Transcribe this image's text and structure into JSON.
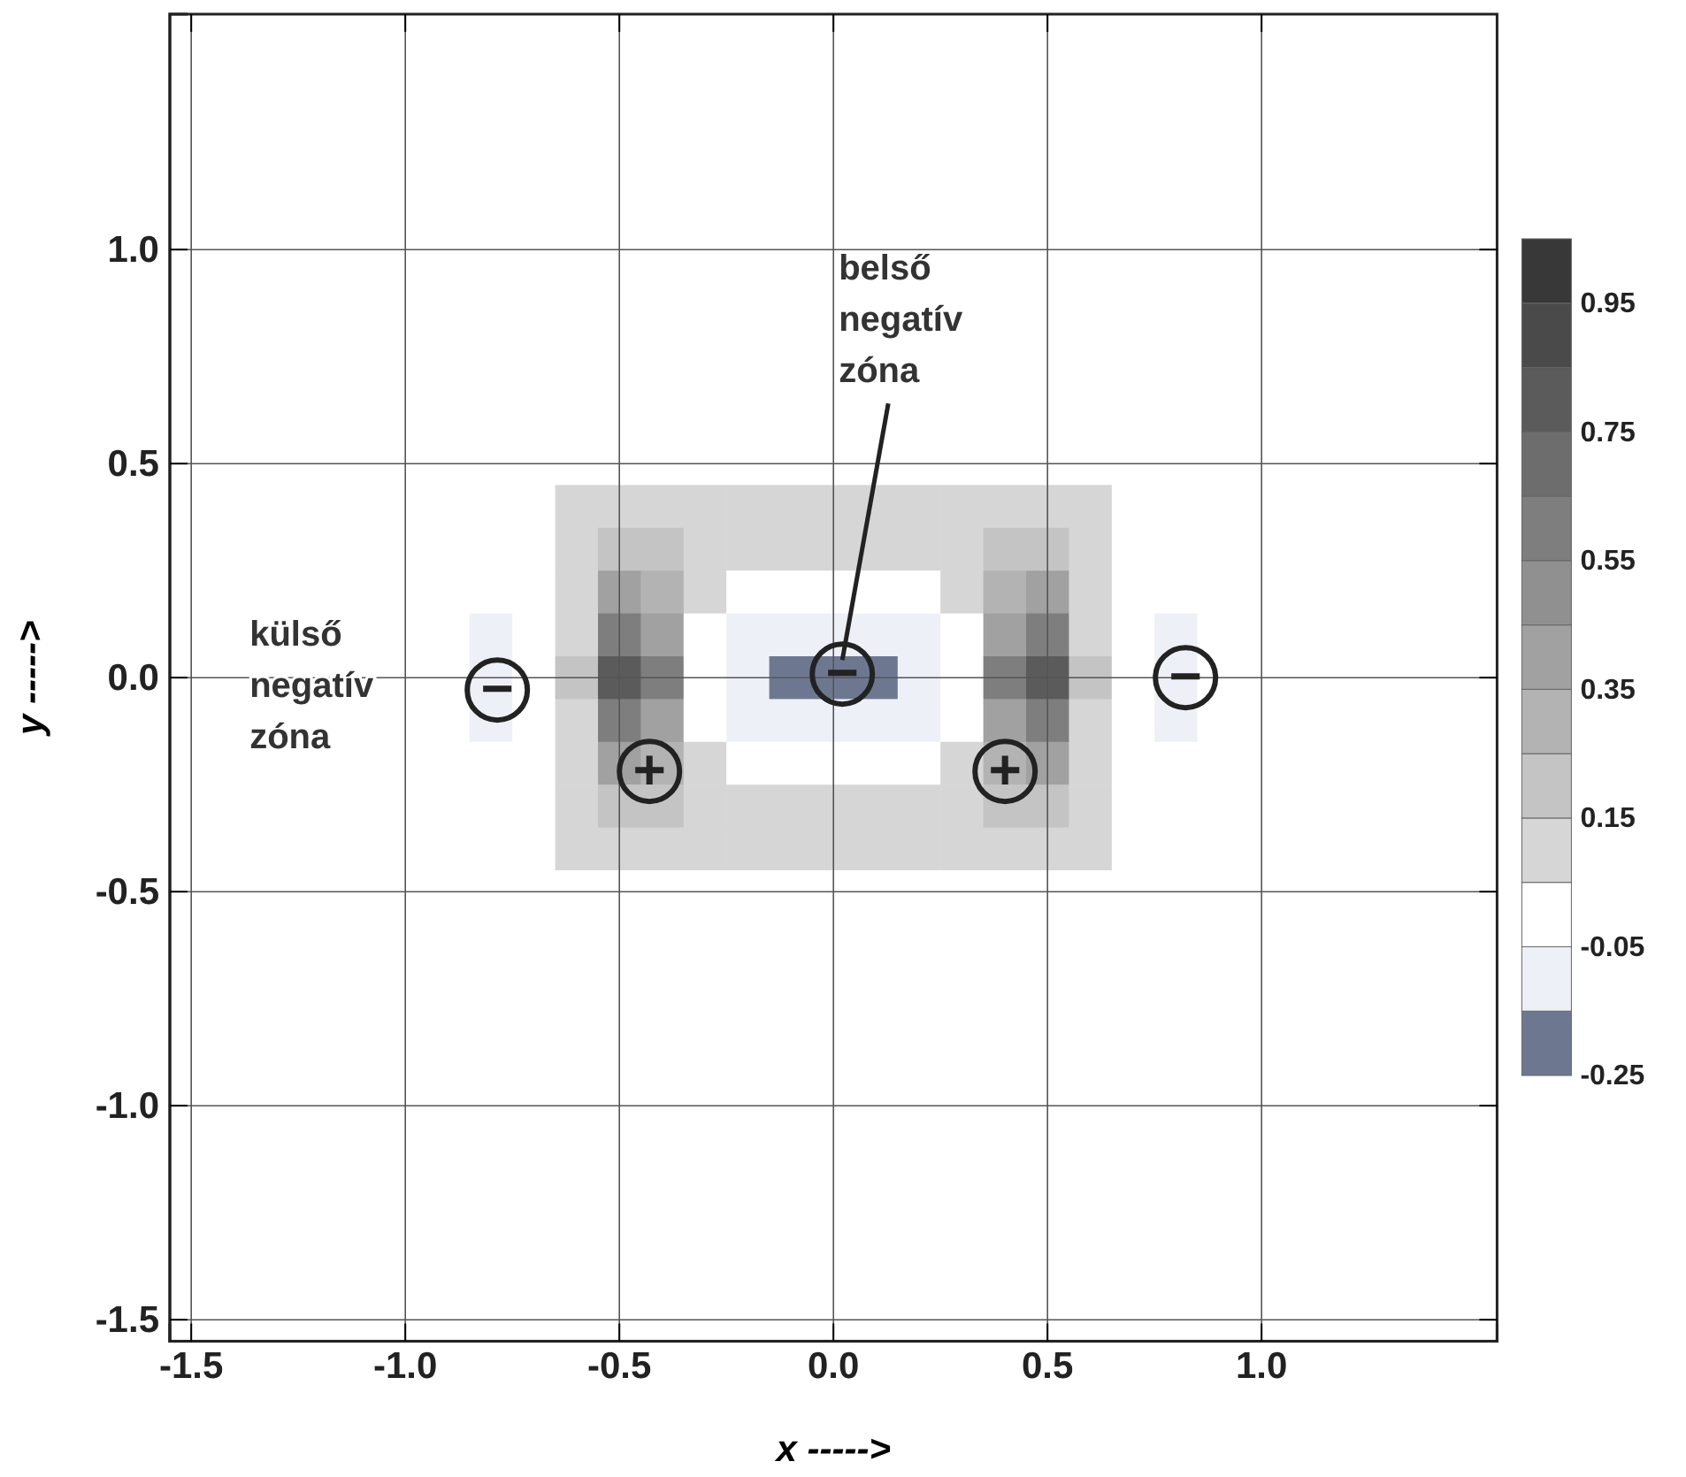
{
  "chart_data": {
    "type": "heatmap",
    "xlabel": "x ----->",
    "ylabel": "y ----->",
    "categories": [
      "-1.5",
      null,
      null,
      null,
      null,
      "-1.0",
      null,
      null,
      null,
      null,
      "-0.5",
      null,
      null,
      null,
      null,
      "0.0",
      null,
      null,
      null,
      null,
      "0.5",
      null,
      null,
      null,
      null,
      "1.0",
      null,
      null,
      null,
      null,
      null
    ],
    "y_categories": [
      null,
      null,
      null,
      null,
      null,
      "1.0",
      null,
      null,
      null,
      null,
      "0.5",
      null,
      null,
      null,
      null,
      "0.0",
      null,
      null,
      null,
      null,
      "-0.5",
      null,
      null,
      null,
      null,
      "-1.0",
      null,
      null,
      null,
      null,
      "-1.5"
    ],
    "grid": true,
    "clim": [
      -0.25,
      1.05
    ],
    "cticks": [
      -0.25,
      -0.05,
      0.15,
      0.35,
      0.55,
      0.75,
      0.95
    ],
    "cells": [
      [
        0,
        0,
        0,
        0,
        0,
        0,
        0,
        0,
        0,
        0,
        0,
        0,
        0,
        0,
        0,
        0,
        0,
        0,
        0,
        0,
        0,
        0,
        0,
        0,
        0,
        0,
        0,
        0,
        0,
        0,
        0
      ],
      [
        0,
        0,
        0,
        0,
        0,
        0,
        0,
        0,
        0,
        0,
        0,
        0,
        0,
        0,
        0,
        0,
        0,
        0,
        0,
        0,
        0,
        0,
        0,
        0,
        0,
        0,
        0,
        0,
        0,
        0,
        0
      ],
      [
        0,
        0,
        0,
        0,
        0,
        0,
        0,
        0,
        0,
        0,
        0,
        0,
        0,
        0,
        0,
        0,
        0,
        0,
        0,
        0,
        0,
        0,
        0,
        0,
        0,
        0,
        0,
        0,
        0,
        0,
        0
      ],
      [
        0,
        0,
        0,
        0,
        0,
        0,
        0,
        0,
        0,
        0,
        0,
        0,
        0,
        0,
        0,
        0,
        0,
        0,
        0,
        0,
        0,
        0,
        0,
        0,
        0,
        0,
        0,
        0,
        0,
        0,
        0
      ],
      [
        0,
        0,
        0,
        0,
        0,
        0,
        0,
        0,
        0,
        0,
        0,
        0,
        0,
        0,
        0,
        0,
        0,
        0,
        0,
        0,
        0,
        0,
        0,
        0,
        0,
        0,
        0,
        0,
        0,
        0,
        0
      ],
      [
        0,
        0,
        0,
        0,
        0,
        0,
        0,
        0,
        0,
        0,
        0,
        0,
        0,
        0,
        0,
        0,
        0,
        0,
        0,
        0,
        0,
        0,
        0,
        0,
        0,
        0,
        0,
        0,
        0,
        0,
        0
      ],
      [
        0,
        0,
        0,
        0,
        0,
        0,
        0,
        0,
        0,
        0,
        0,
        0,
        0,
        0,
        0,
        0,
        0,
        0,
        0,
        0,
        0,
        0,
        0,
        0,
        0,
        0,
        0,
        0,
        0,
        0,
        0
      ],
      [
        0,
        0,
        0,
        0,
        0,
        0,
        0,
        0,
        0,
        0,
        0,
        0,
        0,
        0,
        0,
        0,
        0,
        0,
        0,
        0,
        0,
        0,
        0,
        0,
        0,
        0,
        0,
        0,
        0,
        0,
        0
      ],
      [
        0,
        0,
        0,
        0,
        0,
        0,
        0,
        0,
        0,
        0,
        0,
        0,
        0,
        0,
        0,
        0,
        0,
        0,
        0,
        0,
        0,
        0,
        0,
        0,
        0,
        0,
        0,
        0,
        0,
        0,
        0
      ],
      [
        0,
        0,
        0,
        0,
        0,
        0,
        0,
        0,
        0,
        0,
        0,
        0,
        0,
        0,
        0,
        0,
        0,
        0,
        0,
        0,
        0,
        0,
        0,
        0,
        0,
        0,
        0,
        0,
        0,
        0,
        0
      ],
      [
        0,
        0,
        0,
        0,
        0,
        0,
        0,
        0,
        0,
        0,
        0,
        0,
        0,
        0,
        0,
        0,
        0,
        0,
        0,
        0,
        0,
        0,
        0,
        0,
        0,
        0,
        0,
        0,
        0,
        0,
        0
      ],
      [
        0,
        0,
        0,
        0,
        0,
        0,
        0,
        0,
        0,
        0.1,
        0.1,
        0.1,
        0.1,
        0.1,
        0.1,
        0.1,
        0.1,
        0.1,
        0.1,
        0.1,
        0.1,
        0.1,
        0,
        0,
        0,
        0,
        0,
        0,
        0,
        0,
        0
      ],
      [
        0,
        0,
        0,
        0,
        0,
        0,
        0,
        0,
        0,
        0.1,
        0.2,
        0.2,
        0.1,
        0.1,
        0.1,
        0.1,
        0.1,
        0.1,
        0.1,
        0.2,
        0.2,
        0.1,
        0,
        0,
        0,
        0,
        0,
        0,
        0,
        0,
        0
      ],
      [
        0,
        0,
        0,
        0,
        0,
        0,
        0,
        0,
        0,
        0.1,
        0.4,
        0.3,
        0.1,
        0,
        0,
        0,
        0,
        0,
        0.1,
        0.3,
        0.4,
        0.1,
        0,
        0,
        0,
        0,
        0,
        0,
        0,
        0,
        0
      ],
      [
        0,
        0,
        0,
        0,
        0,
        0,
        0,
        -0.1,
        0,
        0.1,
        0.6,
        0.4,
        0,
        -0.1,
        -0.1,
        -0.1,
        -0.1,
        -0.1,
        0,
        0.4,
        0.6,
        0.1,
        0,
        -0.1,
        0,
        0,
        0,
        0,
        0,
        0,
        0
      ],
      [
        0,
        0,
        0,
        0,
        0,
        0,
        0,
        -0.1,
        0,
        0.2,
        0.8,
        0.6,
        0,
        -0.1,
        -0.2,
        -0.2,
        -0.2,
        -0.1,
        0,
        0.6,
        0.8,
        0.2,
        0,
        -0.1,
        0,
        0,
        0,
        0,
        0,
        0,
        0
      ],
      [
        0,
        0,
        0,
        0,
        0,
        0,
        0,
        -0.1,
        0,
        0.1,
        0.6,
        0.4,
        0,
        -0.1,
        -0.1,
        -0.1,
        -0.1,
        -0.1,
        0,
        0.4,
        0.6,
        0.1,
        0,
        -0.1,
        0,
        0,
        0,
        0,
        0,
        0,
        0
      ],
      [
        0,
        0,
        0,
        0,
        0,
        0,
        0,
        0,
        0,
        0.1,
        0.4,
        0.3,
        0.1,
        0,
        0,
        0,
        0,
        0,
        0.1,
        0.3,
        0.4,
        0.1,
        0,
        0,
        0,
        0,
        0,
        0,
        0,
        0,
        0
      ],
      [
        0,
        0,
        0,
        0,
        0,
        0,
        0,
        0,
        0,
        0.1,
        0.2,
        0.2,
        0.1,
        0.1,
        0.1,
        0.1,
        0.1,
        0.1,
        0.1,
        0.2,
        0.2,
        0.1,
        0,
        0,
        0,
        0,
        0,
        0,
        0,
        0,
        0
      ],
      [
        0,
        0,
        0,
        0,
        0,
        0,
        0,
        0,
        0,
        0.1,
        0.1,
        0.1,
        0.1,
        0.1,
        0.1,
        0.1,
        0.1,
        0.1,
        0.1,
        0.1,
        0.1,
        0.1,
        0,
        0,
        0,
        0,
        0,
        0,
        0,
        0,
        0
      ],
      [
        0,
        0,
        0,
        0,
        0,
        0,
        0,
        0,
        0,
        0,
        0,
        0,
        0,
        0,
        0,
        0,
        0,
        0,
        0,
        0,
        0,
        0,
        0,
        0,
        0,
        0,
        0,
        0,
        0,
        0,
        0
      ],
      [
        0,
        0,
        0,
        0,
        0,
        0,
        0,
        0,
        0,
        0,
        0,
        0,
        0,
        0,
        0,
        0,
        0,
        0,
        0,
        0,
        0,
        0,
        0,
        0,
        0,
        0,
        0,
        0,
        0,
        0,
        0
      ],
      [
        0,
        0,
        0,
        0,
        0,
        0,
        0,
        0,
        0,
        0,
        0,
        0,
        0,
        0,
        0,
        0,
        0,
        0,
        0,
        0,
        0,
        0,
        0,
        0,
        0,
        0,
        0,
        0,
        0,
        0,
        0
      ],
      [
        0,
        0,
        0,
        0,
        0,
        0,
        0,
        0,
        0,
        0,
        0,
        0,
        0,
        0,
        0,
        0,
        0,
        0,
        0,
        0,
        0,
        0,
        0,
        0,
        0,
        0,
        0,
        0,
        0,
        0,
        0
      ],
      [
        0,
        0,
        0,
        0,
        0,
        0,
        0,
        0,
        0,
        0,
        0,
        0,
        0,
        0,
        0,
        0,
        0,
        0,
        0,
        0,
        0,
        0,
        0,
        0,
        0,
        0,
        0,
        0,
        0,
        0,
        0
      ],
      [
        0,
        0,
        0,
        0,
        0,
        0,
        0,
        0,
        0,
        0,
        0,
        0,
        0,
        0,
        0,
        0,
        0,
        0,
        0,
        0,
        0,
        0,
        0,
        0,
        0,
        0,
        0,
        0,
        0,
        0,
        0
      ],
      [
        0,
        0,
        0,
        0,
        0,
        0,
        0,
        0,
        0,
        0,
        0,
        0,
        0,
        0,
        0,
        0,
        0,
        0,
        0,
        0,
        0,
        0,
        0,
        0,
        0,
        0,
        0,
        0,
        0,
        0,
        0
      ],
      [
        0,
        0,
        0,
        0,
        0,
        0,
        0,
        0,
        0,
        0,
        0,
        0,
        0,
        0,
        0,
        0,
        0,
        0,
        0,
        0,
        0,
        0,
        0,
        0,
        0,
        0,
        0,
        0,
        0,
        0,
        0
      ],
      [
        0,
        0,
        0,
        0,
        0,
        0,
        0,
        0,
        0,
        0,
        0,
        0,
        0,
        0,
        0,
        0,
        0,
        0,
        0,
        0,
        0,
        0,
        0,
        0,
        0,
        0,
        0,
        0,
        0,
        0,
        0
      ],
      [
        0,
        0,
        0,
        0,
        0,
        0,
        0,
        0,
        0,
        0,
        0,
        0,
        0,
        0,
        0,
        0,
        0,
        0,
        0,
        0,
        0,
        0,
        0,
        0,
        0,
        0,
        0,
        0,
        0,
        0,
        0
      ],
      [
        0,
        0,
        0,
        0,
        0,
        0,
        0,
        0,
        0,
        0,
        0,
        0,
        0,
        0,
        0,
        0,
        0,
        0,
        0,
        0,
        0,
        0,
        0,
        0,
        0,
        0,
        0,
        0,
        0,
        0,
        0
      ]
    ],
    "annotations": [
      "belső negatív zóna",
      "külső negatív zóna",
      "−",
      "+",
      "−",
      "+",
      "−"
    ]
  }
}
